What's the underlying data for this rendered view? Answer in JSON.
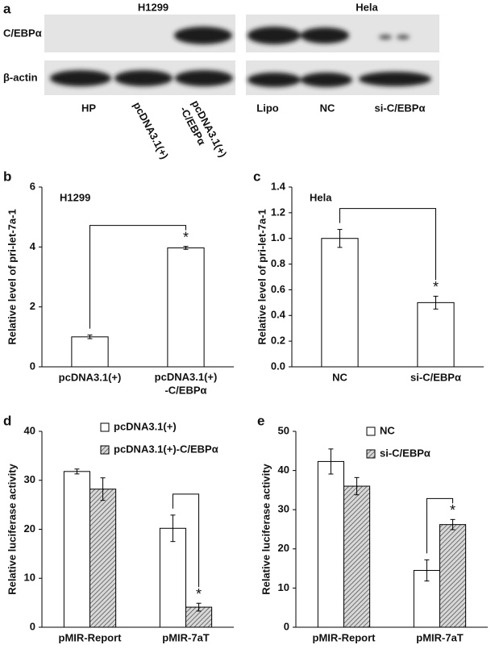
{
  "figure": {
    "panel_a": {
      "label": "a",
      "rows": [
        "C/EBPα",
        "β-actin"
      ],
      "groups": [
        {
          "title": "H1299",
          "lanes": [
            "HP",
            "pcDNA3.1(+)",
            "pcDNA3.1(+)\n-C/EBPα"
          ]
        },
        {
          "title": "Hela",
          "lanes": [
            "Lipo",
            "NC",
            "si-C/EBPα"
          ]
        }
      ]
    }
  },
  "chart_data": [
    {
      "type": "bar",
      "panel": "b",
      "annotation": "H1299",
      "y_label": "Relative level of pri-let-7a-1",
      "categories": [
        "pcDNA3.1(+)",
        "pcDNA3.1(+)\n-C/EBPα"
      ],
      "values": [
        1.0,
        3.97
      ],
      "errors": [
        0.06,
        0.05
      ],
      "color": "#ffffff",
      "ylim": [
        0,
        6
      ],
      "yticks": [
        0,
        2,
        4,
        6
      ],
      "significance_label": "*"
    },
    {
      "type": "bar",
      "panel": "c",
      "annotation": "Hela",
      "y_label": "Relative level of pri-let-7a-1",
      "categories": [
        "NC",
        "si-C/EBPα"
      ],
      "values": [
        1.0,
        0.5
      ],
      "errors": [
        0.07,
        0.05
      ],
      "color": "#ffffff",
      "ylim": [
        0,
        1.4
      ],
      "yticks": [
        {
          "value": 0,
          "label": "0.0"
        },
        0.2,
        0.4,
        0.6,
        0.8,
        {
          "value": 1,
          "label": "1.0"
        },
        1.2,
        1.4
      ],
      "significance_label": "*"
    },
    {
      "type": "bar",
      "panel": "d",
      "y_label": "Relative luciferase activity",
      "categories": [
        "pMIR-Report",
        "pMIR-7aT"
      ],
      "series": [
        {
          "name": "pcDNA3.1(+)",
          "color": "#ffffff",
          "values": [
            31.8,
            20.2
          ],
          "errors": [
            0.5,
            2.7
          ]
        },
        {
          "name": "pcDNA3.1(+)-C/EBPα",
          "color": "#555555",
          "hatch": true,
          "values": [
            28.2,
            4.1
          ],
          "errors": [
            2.3,
            0.8
          ]
        }
      ],
      "ylim": [
        0,
        40
      ],
      "yticks": [
        0,
        10,
        20,
        30,
        40
      ],
      "significance_label": "*"
    },
    {
      "type": "bar",
      "panel": "e",
      "y_label": "Relative luciferase activity",
      "categories": [
        "pMIR-Report",
        "pMIR-7aT"
      ],
      "series": [
        {
          "name": "NC",
          "color": "#ffffff",
          "values": [
            42.3,
            14.5
          ],
          "errors": [
            3.2,
            2.7
          ]
        },
        {
          "name": "si-C/EBPα",
          "color": "#555555",
          "hatch": true,
          "values": [
            36.0,
            26.2
          ],
          "errors": [
            2.2,
            1.3
          ]
        }
      ],
      "ylim": [
        0,
        50
      ],
      "yticks": [
        0,
        10,
        20,
        30,
        40,
        50
      ],
      "significance_label": "*"
    }
  ]
}
